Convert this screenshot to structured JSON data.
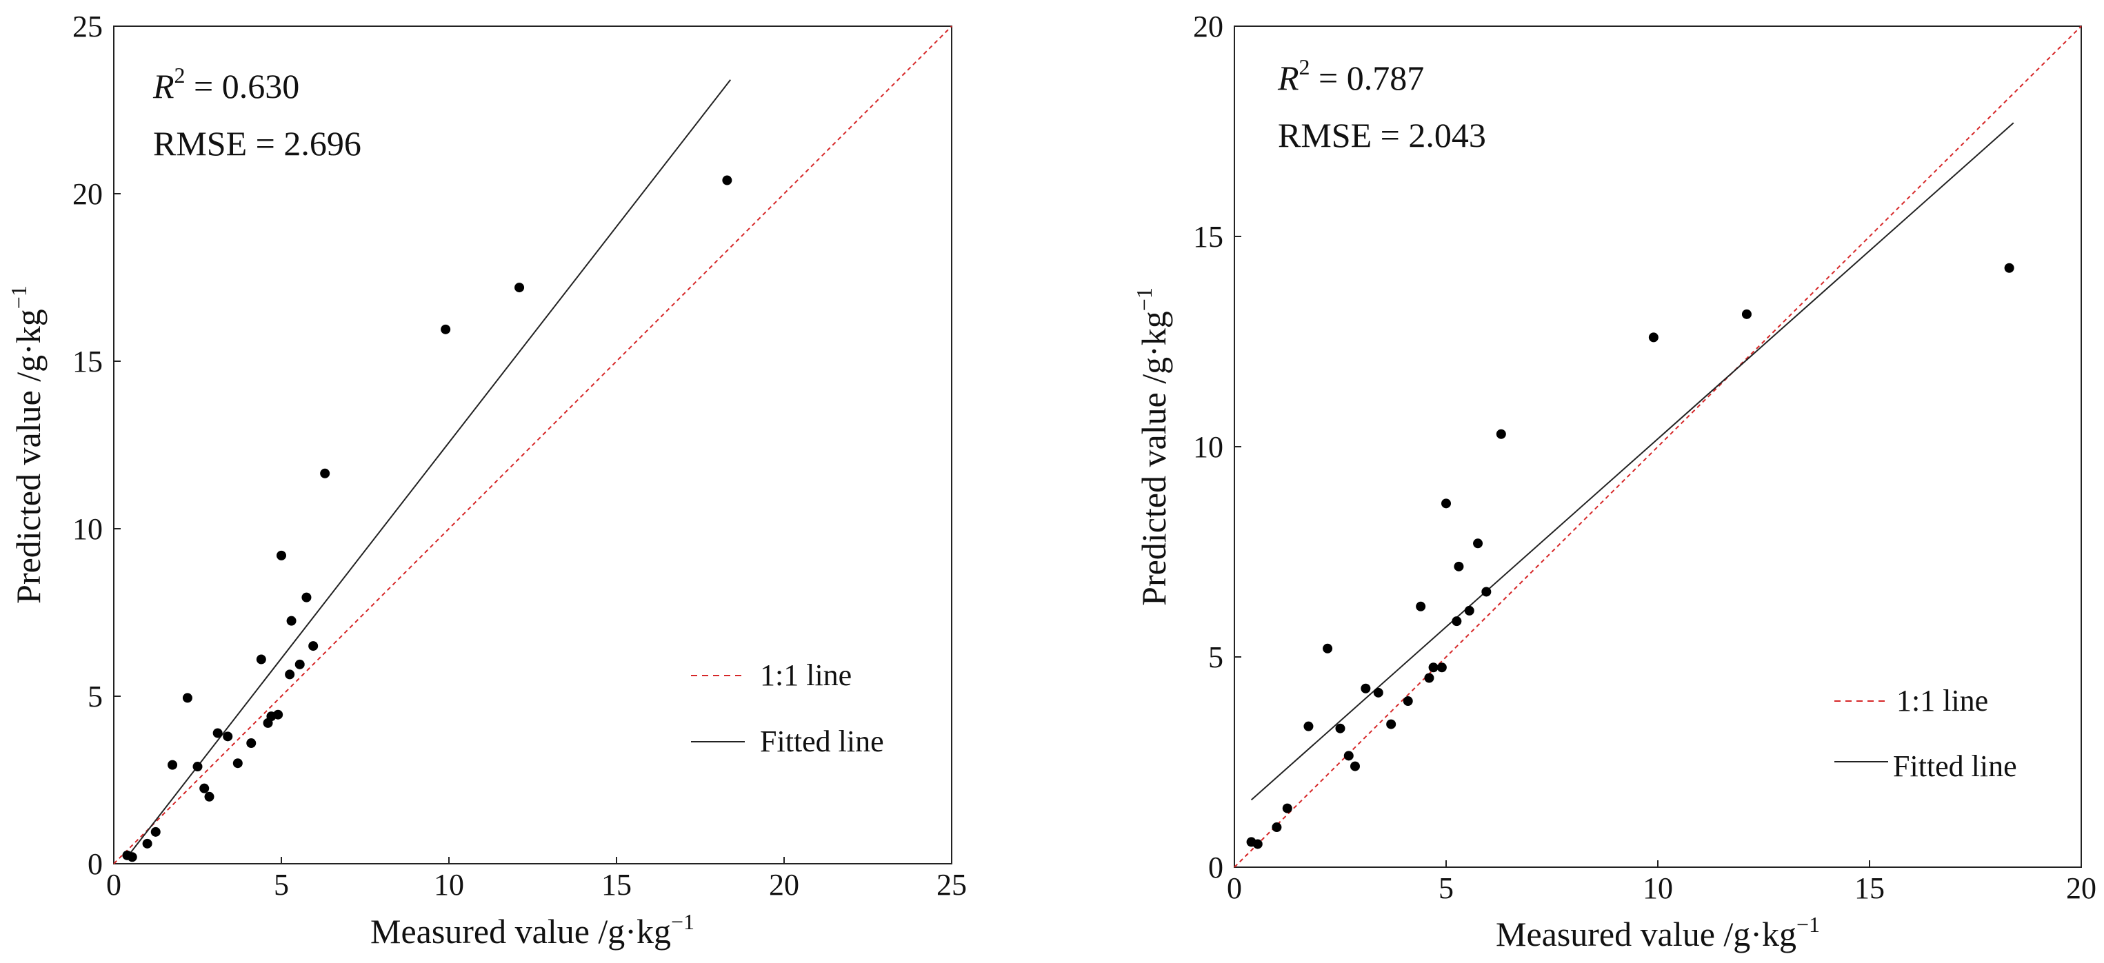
{
  "chart_data": [
    {
      "type": "scatter",
      "xlabel": "Measured value /g·kg",
      "xlabel_exp": "−1",
      "ylabel": "Predicted value /g·kg",
      "ylabel_exp": "−1",
      "xlim": [
        0,
        25
      ],
      "ylim": [
        0,
        25
      ],
      "xticks": [
        "0",
        "5",
        "10",
        "15",
        "20",
        "25"
      ],
      "yticks": [
        "0",
        "5",
        "10",
        "15",
        "20",
        "25"
      ],
      "stats": {
        "r2_symbol": "R",
        "r2_exp": "2",
        "r2_value": " = 0.630",
        "rmse": "RMSE = 2.696"
      },
      "legend": {
        "position": "lower-right",
        "one_to_one": "1:1 line",
        "fitted": "Fitted line"
      },
      "one_to_one_color": "#d62728",
      "fit_line": {
        "x": [
          0.4,
          18.4
        ],
        "y": [
          0.2,
          23.4
        ]
      },
      "points": {
        "x": [
          0.4,
          0.55,
          1.0,
          1.25,
          1.75,
          2.2,
          2.5,
          2.7,
          2.85,
          3.1,
          3.4,
          3.7,
          4.1,
          4.4,
          4.6,
          4.7,
          4.9,
          5.0,
          5.25,
          5.3,
          5.55,
          5.75,
          5.95,
          6.3,
          9.9,
          12.1,
          18.3
        ],
        "y": [
          0.25,
          0.2,
          0.6,
          0.95,
          2.95,
          4.95,
          2.9,
          2.25,
          2.0,
          3.9,
          3.8,
          3.0,
          3.6,
          6.1,
          4.2,
          4.4,
          4.45,
          9.2,
          5.65,
          7.25,
          5.95,
          7.95,
          6.5,
          11.65,
          15.95,
          17.2,
          20.4
        ]
      }
    },
    {
      "type": "scatter",
      "xlabel": "Measured value /g·kg",
      "xlabel_exp": "−1",
      "ylabel": "Predicted value /g·kg",
      "ylabel_exp": "−1",
      "xlim": [
        0,
        20
      ],
      "ylim": [
        0,
        20
      ],
      "xticks": [
        "0",
        "5",
        "10",
        "15",
        "20"
      ],
      "yticks": [
        "0",
        "5",
        "10",
        "15",
        "20"
      ],
      "stats": {
        "r2_symbol": "R",
        "r2_exp": "2",
        "r2_value": " = 0.787",
        "rmse": "RMSE = 2.043"
      },
      "legend": {
        "position": "lower-right",
        "one_to_one": "1:1 line",
        "fitted": "Fitted line"
      },
      "one_to_one_color": "#d62728",
      "fit_line": {
        "x": [
          0.4,
          18.4
        ],
        "y": [
          1.6,
          17.7
        ]
      },
      "points": {
        "x": [
          0.4,
          0.55,
          1.0,
          1.25,
          1.75,
          2.2,
          2.5,
          2.7,
          2.85,
          3.1,
          3.4,
          3.7,
          4.1,
          4.4,
          4.6,
          4.7,
          4.9,
          5.0,
          5.25,
          5.3,
          5.55,
          5.75,
          5.95,
          6.3,
          9.9,
          12.1,
          18.3
        ],
        "y": [
          0.6,
          0.55,
          0.95,
          1.4,
          3.35,
          5.2,
          3.3,
          2.65,
          2.4,
          4.25,
          4.15,
          3.4,
          3.95,
          6.2,
          4.5,
          4.75,
          4.75,
          8.65,
          5.85,
          7.15,
          6.1,
          7.7,
          6.55,
          10.3,
          12.6,
          13.15,
          14.25
        ]
      }
    }
  ]
}
